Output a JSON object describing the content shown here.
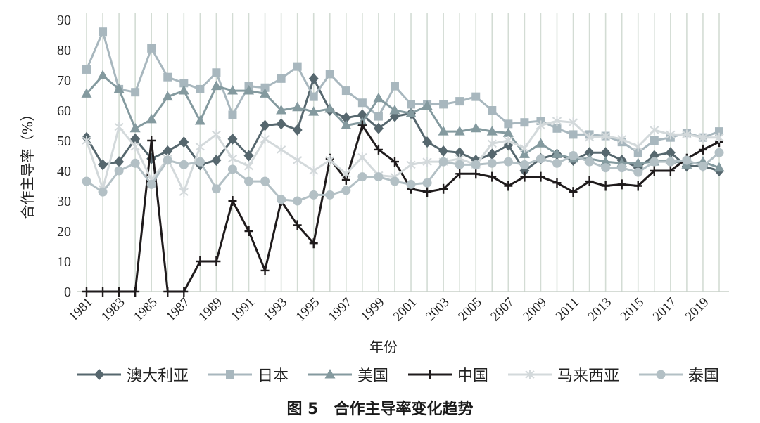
{
  "figure_label": "图 5",
  "chart_data": {
    "type": "line",
    "title": "合作主导率变化趋势",
    "xlabel": "年份",
    "ylabel": "合作主导率（%）",
    "x": [
      1981,
      1982,
      1983,
      1984,
      1985,
      1986,
      1987,
      1988,
      1989,
      1990,
      1991,
      1992,
      1993,
      1994,
      1995,
      1996,
      1997,
      1998,
      1999,
      2000,
      2001,
      2002,
      2003,
      2004,
      2005,
      2006,
      2007,
      2008,
      2009,
      2010,
      2011,
      2012,
      2013,
      2014,
      2015,
      2016,
      2017,
      2018,
      2019,
      2020
    ],
    "x_tick_labels": [
      "1981",
      "1983",
      "1985",
      "1987",
      "1989",
      "1991",
      "1993",
      "1995",
      "1997",
      "1999",
      "2001",
      "2003",
      "2005",
      "2007",
      "2009",
      "2011",
      "2013",
      "2015",
      "2017",
      "2019"
    ],
    "ylim": [
      0,
      90
    ],
    "y_ticks": [
      0,
      10,
      20,
      30,
      40,
      50,
      60,
      70,
      80,
      90
    ],
    "grid": "vertical",
    "legend_position": "bottom",
    "series": [
      {
        "name": "澳大利亚",
        "color": "#56676e",
        "marker": "diamond",
        "values": [
          51,
          42,
          43,
          50.5,
          44,
          46.5,
          49.5,
          42,
          43.5,
          50.5,
          45,
          55,
          55.5,
          53.5,
          70.5,
          60,
          57.5,
          58.5,
          54,
          58,
          59,
          49.5,
          46.5,
          46,
          43.5,
          45.5,
          48.5,
          40,
          44,
          45.5,
          43.5,
          46,
          46,
          43.5,
          41,
          45,
          46,
          41.5,
          41.5,
          40
        ]
      },
      {
        "name": "日本",
        "color": "#a8b7be",
        "marker": "square",
        "values": [
          73.5,
          86,
          67,
          66,
          80.5,
          71,
          69,
          67,
          72.5,
          58.5,
          68,
          67.5,
          70.5,
          74.5,
          64.5,
          72,
          66.5,
          62.5,
          58,
          68,
          62,
          62,
          62,
          63,
          64.5,
          60,
          55.5,
          56,
          56.5,
          54,
          52,
          52,
          51.5,
          49.5,
          46,
          50,
          51,
          52.5,
          51,
          53
        ]
      },
      {
        "name": "美国",
        "color": "#849a9f",
        "marker": "triangle",
        "values": [
          65.5,
          71.5,
          67,
          54,
          57,
          64.5,
          66.5,
          56.5,
          68,
          66.5,
          66.5,
          65.5,
          60,
          61,
          59.5,
          60.5,
          55,
          56,
          64,
          60,
          59,
          61.5,
          53,
          53,
          54,
          53,
          52.5,
          45.5,
          49,
          45.5,
          44,
          44,
          43,
          42.5,
          42.5,
          43,
          43.5,
          42,
          43,
          41
        ]
      },
      {
        "name": "中国",
        "color": "#1f1b1c",
        "marker": "plus",
        "values": [
          0,
          0,
          0,
          0,
          50,
          0,
          0,
          10,
          10,
          30,
          20,
          7,
          30,
          22,
          16,
          44,
          37,
          55,
          47,
          43,
          34,
          33,
          34,
          39,
          39,
          38,
          35,
          38,
          38,
          36,
          33,
          36.5,
          35,
          35.5,
          35,
          40,
          40,
          44,
          47,
          49.5
        ]
      },
      {
        "name": "马来西亚",
        "color": "#d3d9db",
        "marker": "asterisk",
        "values": [
          50,
          34,
          54.5,
          48,
          37,
          44,
          33,
          48,
          52,
          44,
          41.5,
          50.5,
          47,
          43.5,
          40,
          43.5,
          39,
          44.5,
          38.5,
          38,
          42,
          43,
          43,
          44,
          42,
          49,
          50,
          47.5,
          55,
          56.5,
          56,
          51,
          51.5,
          50.5,
          48,
          53.5,
          52,
          52,
          51,
          51
        ]
      },
      {
        "name": "泰国",
        "color": "#b3c0c5",
        "marker": "circle",
        "values": [
          36.5,
          33,
          40,
          42.5,
          35.5,
          43.5,
          42,
          43,
          34,
          40.5,
          36.5,
          36.5,
          30.5,
          30,
          32,
          32,
          33.5,
          38,
          38,
          36.5,
          35.5,
          36,
          43,
          42,
          42,
          42.5,
          43,
          42,
          44,
          42.5,
          45,
          43,
          41,
          41,
          39.5,
          43,
          43,
          43.5,
          41.5,
          46
        ]
      }
    ]
  }
}
